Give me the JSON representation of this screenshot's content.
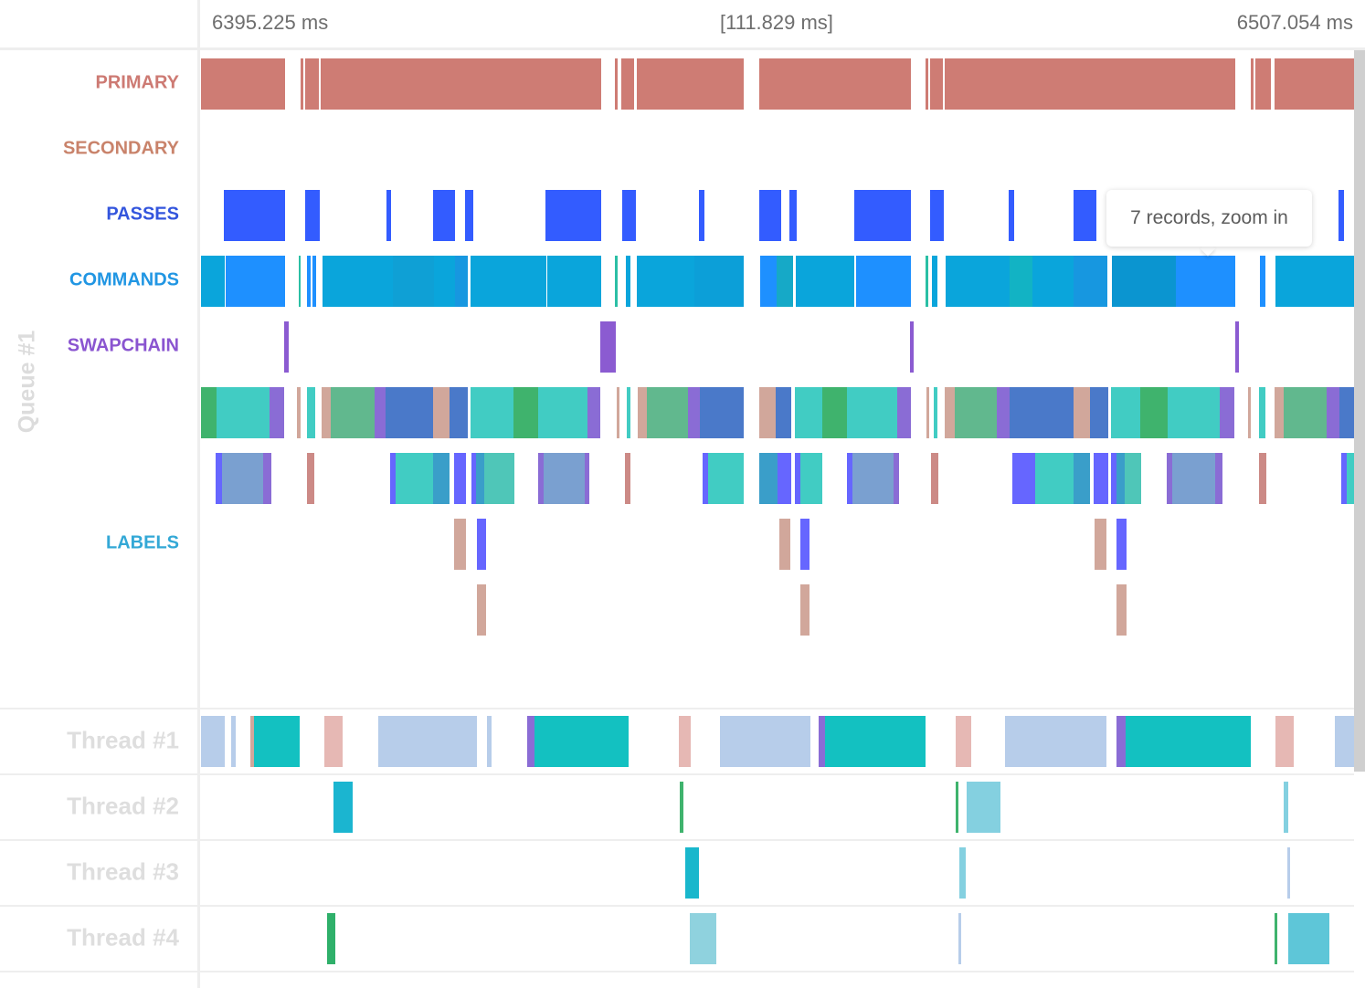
{
  "timeline": {
    "start_time": "6395.225 ms",
    "span": "[111.829 ms]",
    "end_time": "6507.054 ms"
  },
  "queue": {
    "label": "Queue #1",
    "tracks": [
      {
        "key": "primary",
        "label": "PRIMARY",
        "color": "#cd7a73"
      },
      {
        "key": "secondary",
        "label": "SECONDARY",
        "color": "#c9836b"
      },
      {
        "key": "passes",
        "label": "PASSES",
        "color": "#3355dd"
      },
      {
        "key": "commands",
        "label": "COMMANDS",
        "color": "#2196e3"
      },
      {
        "key": "swapchain",
        "label": "SWAPCHAIN",
        "color": "#8a55d0"
      },
      {
        "key": "labels",
        "label": "LABELS",
        "color": "#33a8d6"
      }
    ]
  },
  "threads": [
    {
      "label": "Thread #1"
    },
    {
      "label": "Thread #2"
    },
    {
      "label": "Thread #3"
    },
    {
      "label": "Thread #4"
    }
  ],
  "tooltip": {
    "text": "7 records, zoom in"
  },
  "colors": {
    "primary_bar": "#ce7c74",
    "pass_bar": "#335cff",
    "command_blue": "#1e90ff",
    "command_teal": "#0aa5db",
    "swapchain_bar": "#8b5bd1",
    "label_green": "#3fb36d",
    "label_teal": "#41ccc3",
    "label_purple": "#8a6cd5",
    "label_blue": "#4a79c9",
    "label_tan": "#d1a79b",
    "label_sage": "#61b88e",
    "label_violet": "#6666ff",
    "label_rose": "#cc8a86",
    "thread_teal": "#13c1c1",
    "thread_light": "#b7cdea"
  }
}
